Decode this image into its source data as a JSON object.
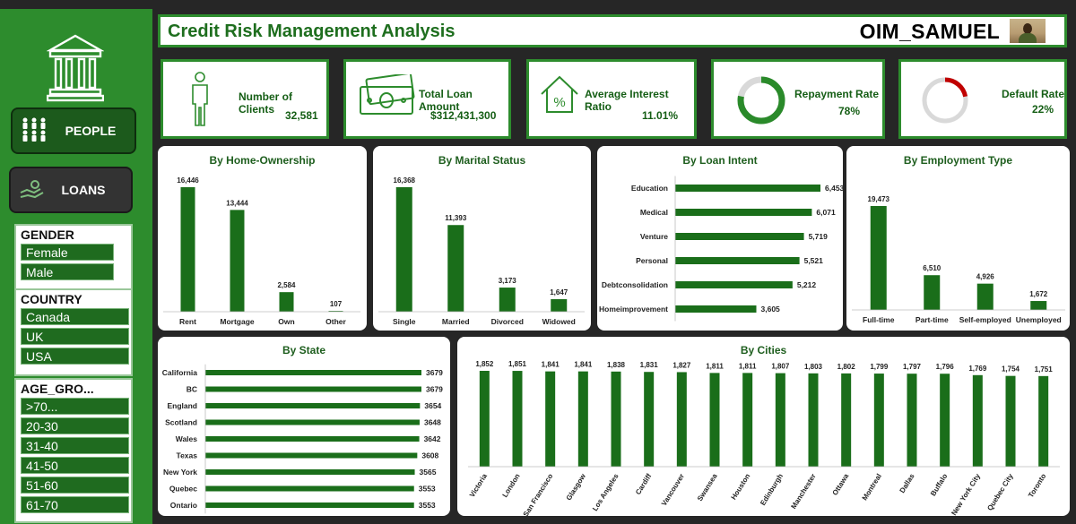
{
  "header": {
    "title": "Credit Risk Management Analysis",
    "brand": "OIM_SAMUEL"
  },
  "nav": {
    "people": "PEOPLE",
    "loans": "LOANS"
  },
  "slicers": {
    "gender": {
      "title": "GENDER",
      "items": [
        "Female",
        "Male"
      ]
    },
    "country": {
      "title": "COUNTRY",
      "items": [
        "Canada",
        "UK",
        "USA"
      ]
    },
    "age": {
      "title": "AGE_GRO...",
      "items": [
        ">70...",
        "20-30",
        "31-40",
        "41-50",
        "51-60",
        "61-70"
      ]
    }
  },
  "kpis": {
    "clients": {
      "label": "Number of Clients",
      "value": "32,581"
    },
    "loan": {
      "label": "Total Loan Amount",
      "value": "$312,431,300"
    },
    "interest": {
      "label": "Average Interest Ratio",
      "value": "11.01%"
    },
    "repayment": {
      "label": "Repayment Rate",
      "value": "78%",
      "fraction": 0.78
    },
    "default": {
      "label": "Default Rate",
      "value": "22%",
      "fraction": 0.22
    }
  },
  "colors": {
    "bar": "#1a6e1a",
    "panel_border": "#2d8c2d",
    "donut_green": "#2a8a2a",
    "donut_red": "#c00000",
    "donut_track": "#d9d9d9"
  },
  "chart_data": [
    {
      "id": "home",
      "type": "bar",
      "title": "By Home-Ownership",
      "categories": [
        "Rent",
        "Mortgage",
        "Own",
        "Other"
      ],
      "values": [
        16446,
        13444,
        2584,
        107
      ],
      "labels": [
        "16,446",
        "13,444",
        "2,584",
        "107"
      ]
    },
    {
      "id": "marital",
      "type": "bar",
      "title": "By Marital Status",
      "categories": [
        "Single",
        "Married",
        "Divorced",
        "Widowed"
      ],
      "values": [
        16368,
        11393,
        3173,
        1647
      ],
      "labels": [
        "16,368",
        "11,393",
        "3,173",
        "1,647"
      ]
    },
    {
      "id": "intent",
      "type": "bar",
      "orientation": "horizontal",
      "title": "By Loan Intent",
      "categories": [
        "Education",
        "Medical",
        "Venture",
        "Personal",
        "Debtconsolidation",
        "Homeimprovement"
      ],
      "values": [
        6453,
        6071,
        5719,
        5521,
        5212,
        3605
      ],
      "labels": [
        "6,453",
        "6,071",
        "5,719",
        "5,521",
        "5,212",
        "3,605"
      ]
    },
    {
      "id": "employment",
      "type": "bar",
      "title": "By Employment Type",
      "categories": [
        "Full-time",
        "Part-time",
        "Self-employed",
        "Unemployed"
      ],
      "values": [
        19473,
        6510,
        4926,
        1672
      ],
      "labels": [
        "19,473",
        "6,510",
        "4,926",
        "1,672"
      ]
    },
    {
      "id": "state",
      "type": "bar",
      "orientation": "horizontal",
      "title": "By State",
      "categories": [
        "California",
        "BC",
        "England",
        "Scotland",
        "Wales",
        "Texas",
        "New York",
        "Quebec",
        "Ontario"
      ],
      "values": [
        3679,
        3679,
        3654,
        3648,
        3642,
        3608,
        3565,
        3553,
        3553
      ],
      "labels": [
        "3679",
        "3679",
        "3654",
        "3648",
        "3642",
        "3608",
        "3565",
        "3553",
        "3553"
      ]
    },
    {
      "id": "cities",
      "type": "bar",
      "title": "By Cities",
      "categories": [
        "Victoria",
        "London",
        "San Francisco",
        "Glasgow",
        "Los Angeles",
        "Cardiff",
        "Vancouver",
        "Swansea",
        "Houston",
        "Edinburgh",
        "Manchester",
        "Ottawa",
        "Montreal",
        "Dallas",
        "Buffalo",
        "New York City",
        "Quebec City",
        "Toronto"
      ],
      "values": [
        1852,
        1851,
        1841,
        1841,
        1838,
        1831,
        1827,
        1811,
        1811,
        1807,
        1803,
        1802,
        1799,
        1797,
        1796,
        1769,
        1754,
        1751
      ],
      "labels": [
        "1,852",
        "1,851",
        "1,841",
        "1,841",
        "1,838",
        "1,831",
        "1,827",
        "1,811",
        "1,811",
        "1,807",
        "1,803",
        "1,802",
        "1,799",
        "1,797",
        "1,796",
        "1,769",
        "1,754",
        "1,751"
      ]
    }
  ]
}
